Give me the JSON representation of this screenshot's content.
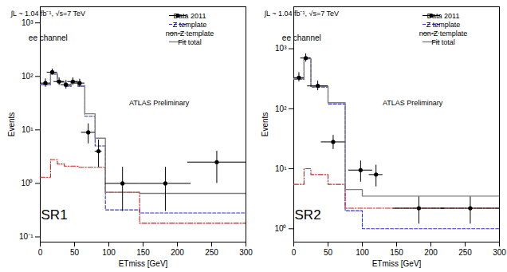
{
  "chart_data": [
    {
      "type": "step",
      "xlabel": "ETmiss [GeV]",
      "ylabel": "Events",
      "xlim": [
        0,
        300
      ],
      "xticks": [
        0,
        50,
        100,
        150,
        200,
        250,
        300
      ],
      "ylim": [
        0.08,
        2000
      ],
      "yticks": [
        {
          "value": 0.1,
          "label": "10⁻¹"
        },
        {
          "value": 1,
          "label": "10⁰"
        },
        {
          "value": 10,
          "label": "10¹"
        },
        {
          "value": 100,
          "label": "10²"
        },
        {
          "value": 1000,
          "label": "10³"
        }
      ],
      "log": "y",
      "grid": false,
      "legend": "upper right",
      "annotations": [
        "SR1",
        "∫L ~ 1.04 fb⁻¹, √s=7 TeV",
        "ee channel",
        "ATLAS Preliminary"
      ],
      "series": [
        {
          "name": "Data 2011",
          "type": "errorbar",
          "color": "black",
          "marker": "circle",
          "x": [
            7.5,
            17.5,
            27.5,
            37.5,
            47.5,
            57.5,
            70,
            85,
            120,
            182.5,
            257.5
          ],
          "values": [
            75,
            120,
            80,
            70,
            80,
            75,
            9,
            4,
            1.0,
            1.0,
            2.5
          ],
          "xerr_lo": [
            7.5,
            7.5,
            7.5,
            7.5,
            7.5,
            7.5,
            10,
            5,
            25,
            37.5,
            42.5
          ],
          "xerr_hi": [
            7.5,
            7.5,
            7.5,
            7.5,
            7.5,
            7.5,
            10,
            5,
            25,
            37.5,
            42.5
          ],
          "yerr_lo": [
            12,
            15,
            12,
            12,
            12,
            12,
            3.5,
            2.0,
            0.7,
            0.7,
            1.5
          ],
          "yerr_hi": [
            15,
            18,
            14,
            14,
            14,
            14,
            4.0,
            2.5,
            1.0,
            1.0,
            1.5
          ]
        },
        {
          "name": "Z template",
          "type": "step",
          "color": "#3333cc",
          "line_style": "dashed",
          "bins": [
            0,
            15,
            25,
            35,
            45,
            55,
            65,
            80,
            95,
            145,
            215,
            300
          ],
          "values": [
            70,
            110,
            78,
            65,
            78,
            65,
            18,
            5.0,
            0.32,
            0.28,
            0.28
          ]
        },
        {
          "name": "non-Z template",
          "type": "step",
          "color": "#cc2222",
          "line_style": "dashdot",
          "bins": [
            0,
            15,
            25,
            35,
            45,
            55,
            65,
            80,
            95,
            145,
            215,
            300
          ],
          "values": [
            1.3,
            2.8,
            2.3,
            2.1,
            2.1,
            2.0,
            2.0,
            2.0,
            0.68,
            0.18,
            0.18
          ]
        },
        {
          "name": "Fit total",
          "type": "step",
          "color": "#808080",
          "line_style": "solid",
          "bins": [
            0,
            15,
            25,
            35,
            45,
            55,
            65,
            80,
            95,
            145,
            215,
            300
          ],
          "values": [
            72,
            113,
            80,
            67,
            80,
            67,
            20,
            7.0,
            0.68,
            0.65,
            0.65
          ]
        }
      ]
    },
    {
      "type": "step",
      "xlabel": "ETmiss [GeV]",
      "ylabel": "Events",
      "xlim": [
        0,
        300
      ],
      "xticks": [
        0,
        50,
        100,
        150,
        200,
        250,
        300
      ],
      "ylim": [
        0.6,
        5000
      ],
      "yticks": [
        {
          "value": 1,
          "label": "10⁰"
        },
        {
          "value": 10,
          "label": "10¹"
        },
        {
          "value": 100,
          "label": "10²"
        },
        {
          "value": 1000,
          "label": "10³"
        }
      ],
      "log": "y",
      "grid": false,
      "legend": "upper right",
      "annotations": [
        "SR2",
        "∫L ~ 1.04 fb⁻¹, √s=7 TeV",
        "ee channel",
        "ATLAS Preliminary"
      ],
      "series": [
        {
          "name": "Data 2011",
          "type": "errorbar",
          "color": "black",
          "marker": "circle",
          "x": [
            7.5,
            17.5,
            35,
            57.5,
            97.5,
            120,
            182.5,
            257.5
          ],
          "values": [
            330,
            700,
            240,
            28,
            9.5,
            8.0,
            2.2,
            2.2
          ],
          "xerr_lo": [
            7.5,
            7.5,
            15,
            17.5,
            17.5,
            10,
            37.5,
            42.5
          ],
          "xerr_hi": [
            7.5,
            7.5,
            15,
            17.5,
            17.5,
            10,
            37.5,
            42.5
          ],
          "yerr_lo": [
            50,
            100,
            40,
            7,
            3.5,
            3.0,
            1.0,
            1.0
          ],
          "yerr_hi": [
            70,
            120,
            50,
            8,
            4.0,
            3.5,
            1.2,
            1.2
          ]
        },
        {
          "name": "Z template",
          "type": "step",
          "color": "#3333cc",
          "line_style": "dashed",
          "bins": [
            0,
            15,
            25,
            50,
            75,
            100,
            145,
            215,
            300
          ],
          "values": [
            310,
            680,
            230,
            120,
            2.0,
            1.0,
            1.0,
            1.0
          ]
        },
        {
          "name": "non-Z template",
          "type": "step",
          "color": "#cc2222",
          "line_style": "dashdot",
          "bins": [
            0,
            15,
            25,
            50,
            75,
            100,
            145,
            215,
            300
          ],
          "values": [
            5.5,
            10.0,
            8.0,
            5.5,
            2.2,
            2.2,
            2.2,
            2.2
          ]
        },
        {
          "name": "Fit total",
          "type": "step",
          "color": "#808080",
          "line_style": "solid",
          "bins": [
            0,
            15,
            25,
            50,
            75,
            100,
            145,
            215,
            300
          ],
          "values": [
            316,
            690,
            238,
            126,
            4.5,
            3.5,
            3.5,
            3.5
          ]
        }
      ]
    }
  ]
}
